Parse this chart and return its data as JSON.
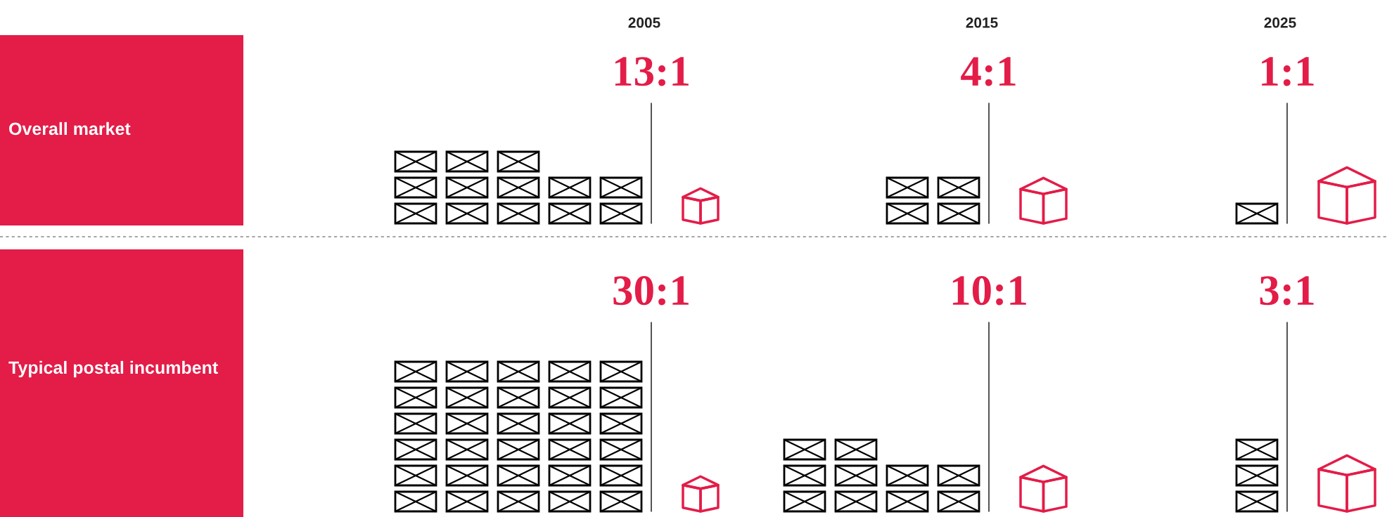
{
  "chart_data": {
    "type": "other",
    "categories": [
      "2005",
      "2015",
      "2025"
    ],
    "series": [
      {
        "name": "Overall market",
        "values": [
          13,
          4,
          1
        ],
        "value_labels": [
          "13:1",
          "4:1",
          "1:1"
        ]
      },
      {
        "name": "Typical postal incumbent",
        "values": [
          30,
          10,
          3
        ],
        "value_labels": [
          "30:1",
          "10:1",
          "3:1"
        ]
      }
    ]
  }
}
